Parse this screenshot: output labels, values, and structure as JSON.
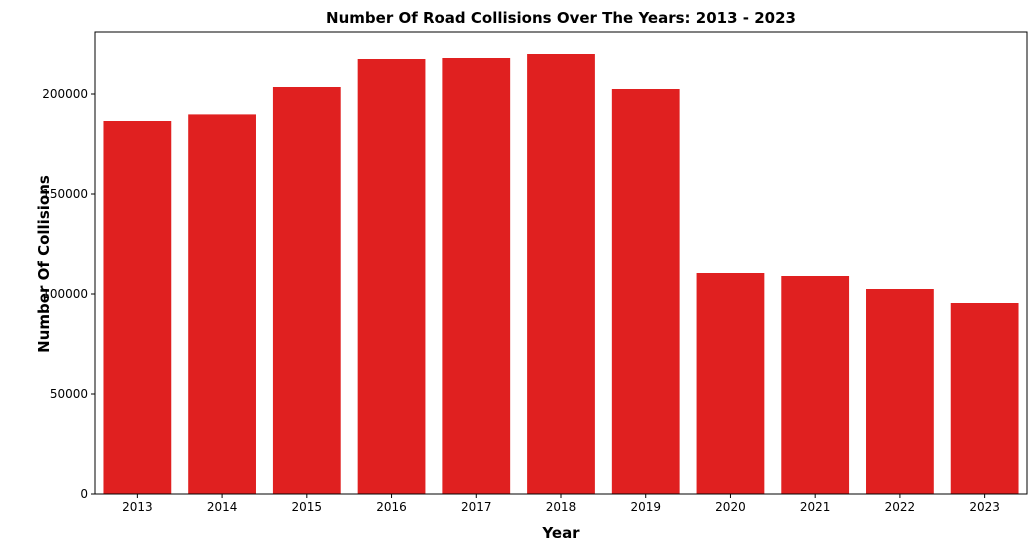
{
  "chart_data": {
    "type": "bar",
    "title": "Number Of Road Collisions Over The Years: 2013 - 2023",
    "xlabel": "Year",
    "ylabel": "Number Of Collisions",
    "categories": [
      "2013",
      "2014",
      "2015",
      "2016",
      "2017",
      "2018",
      "2019",
      "2020",
      "2021",
      "2022",
      "2023"
    ],
    "values": [
      186500,
      189800,
      203500,
      217500,
      218000,
      220000,
      202500,
      110500,
      109000,
      102500,
      95500
    ],
    "ylim": [
      0,
      231000
    ],
    "yticks": [
      0,
      50000,
      100000,
      150000,
      200000
    ],
    "grid": false,
    "legend": "none",
    "bar_color": "#e02020"
  }
}
